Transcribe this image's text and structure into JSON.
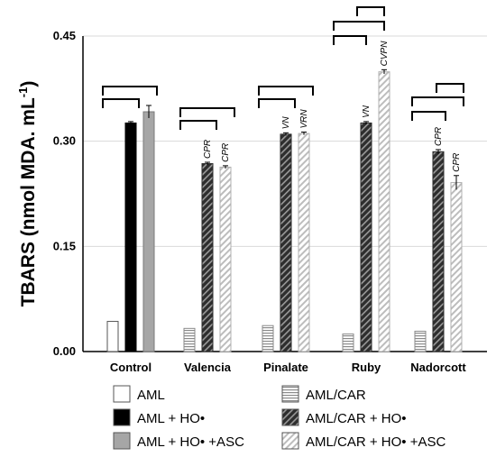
{
  "chart_data": {
    "type": "bar",
    "ylabel_main": "TBARS (nmol MDA. mL",
    "ylabel_sup": "-1",
    "ylabel_close": ")",
    "ylim": [
      0,
      0.45
    ],
    "yticks": [
      "0.00",
      "0.15",
      "0.30",
      "0.45"
    ],
    "ytick_values": [
      0,
      0.15,
      0.3,
      0.45
    ],
    "grid": true,
    "categories": [
      "Control",
      "Valencia",
      "Pinalate",
      "Ruby",
      "Nadorcott"
    ],
    "series": [
      {
        "name": "AML",
        "values": [
          0.043,
          null,
          null,
          null,
          null
        ],
        "errors": [
          0,
          null,
          null,
          null,
          null
        ],
        "fill": "white"
      },
      {
        "name": "AML + HO•",
        "values": [
          0.326,
          null,
          null,
          null,
          null
        ],
        "errors": [
          0.002,
          null,
          null,
          null,
          null
        ],
        "fill": "black"
      },
      {
        "name": "AML + HO• +ASC",
        "values": [
          0.342,
          null,
          null,
          null,
          null
        ],
        "errors": [
          0.009,
          null,
          null,
          null,
          null
        ],
        "fill": "gray"
      },
      {
        "name": "AML/CAR",
        "values": [
          null,
          0.033,
          0.037,
          0.025,
          0.029
        ],
        "errors": [
          null,
          0,
          0,
          0,
          0
        ],
        "fill": "hlines"
      },
      {
        "name": "AML/CAR + HO•",
        "values": [
          null,
          0.268,
          0.31,
          0.326,
          0.285
        ],
        "errors": [
          null,
          0.002,
          0.002,
          0.002,
          0.003
        ],
        "fill": "darkdiag"
      },
      {
        "name": "AML/CAR + HO• +ASC",
        "values": [
          null,
          0.263,
          0.311,
          0.399,
          0.241
        ],
        "errors": [
          null,
          0.002,
          0.002,
          0.003,
          0.01
        ],
        "fill": "lightdiag"
      }
    ],
    "annotations": [
      {
        "category": "Valencia",
        "series": "AML/CAR + HO•",
        "text": "CPR"
      },
      {
        "category": "Valencia",
        "series": "AML/CAR + HO• +ASC",
        "text": "CPR"
      },
      {
        "category": "Pinalate",
        "series": "AML/CAR + HO•",
        "text": "VN"
      },
      {
        "category": "Pinalate",
        "series": "AML/CAR + HO• +ASC",
        "text": "VRN"
      },
      {
        "category": "Ruby",
        "series": "AML/CAR + HO•",
        "text": "VN"
      },
      {
        "category": "Ruby",
        "series": "AML/CAR + HO• +ASC",
        "text": "CVPN"
      },
      {
        "category": "Nadorcott",
        "series": "AML/CAR + HO•",
        "text": "CPR"
      },
      {
        "category": "Nadorcott",
        "series": "AML/CAR + HO• +ASC",
        "text": "CPR"
      }
    ],
    "legend": [
      "AML",
      "AML/CAR",
      "AML + HO•",
      "AML/CAR + HO•",
      "AML + HO• +ASC",
      "AML/CAR + HO• +ASC"
    ],
    "legend_placement": "bottom"
  }
}
